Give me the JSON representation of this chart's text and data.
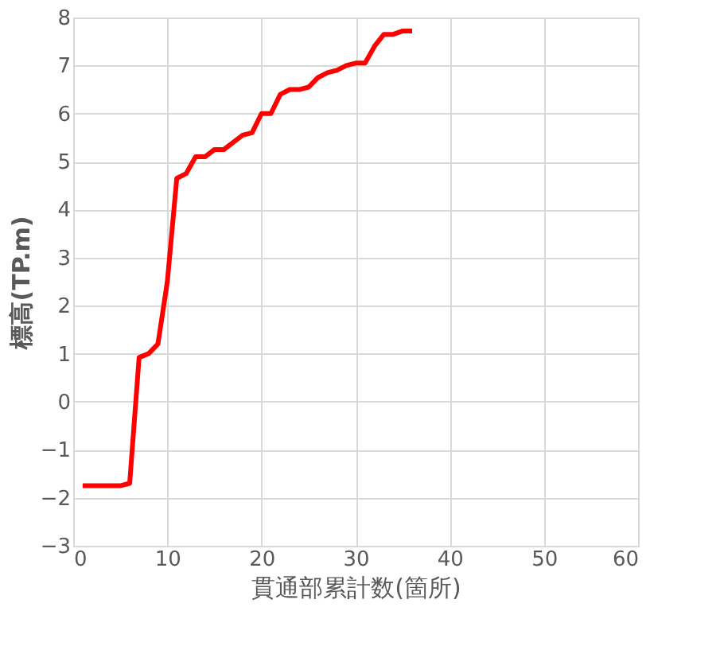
{
  "chart_data": {
    "type": "line",
    "xlabel": "貫通部累計数(箇所)",
    "ylabel": "標高(TP.m)",
    "x": [
      1,
      2,
      3,
      4,
      5,
      6,
      7,
      8,
      9,
      10,
      11,
      12,
      13,
      14,
      15,
      16,
      17,
      18,
      19,
      20,
      21,
      22,
      23,
      24,
      25,
      26,
      27,
      28,
      29,
      30,
      31,
      32,
      33,
      34,
      35,
      36
    ],
    "series": [
      {
        "color": "#ff0000",
        "values": [
          -1.75,
          -1.75,
          -1.75,
          -1.75,
          -1.75,
          -1.7,
          0.92,
          1.0,
          1.2,
          2.5,
          4.65,
          4.75,
          5.1,
          5.1,
          5.25,
          5.25,
          5.4,
          5.55,
          5.6,
          6.0,
          6.0,
          6.4,
          6.5,
          6.5,
          6.55,
          6.75,
          6.85,
          6.9,
          7.0,
          7.05,
          7.05,
          7.4,
          7.65,
          7.65,
          7.72,
          7.72
        ]
      }
    ],
    "xlim": [
      0,
      60
    ],
    "xticks": [
      0,
      10,
      20,
      30,
      40,
      50,
      60
    ],
    "ylim": [
      -3,
      8
    ],
    "yticks": [
      -3,
      -2,
      -1,
      0,
      1,
      2,
      3,
      4,
      5,
      6,
      7,
      8
    ],
    "grid": true,
    "marker": "none",
    "line_style": "solid"
  }
}
